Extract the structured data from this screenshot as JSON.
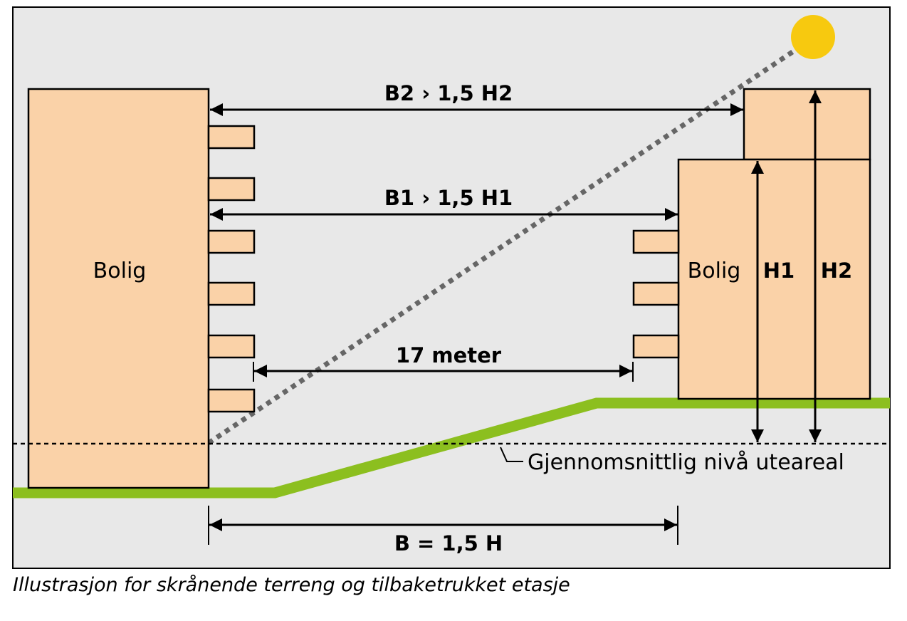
{
  "colors": {
    "background": "#e8e8e8",
    "building": "#fad2a8",
    "terrain": "#8cbf1f",
    "sun": "#f7c90f",
    "line": "#000000",
    "ray": "#666666"
  },
  "buildings": {
    "left_label": "Bolig",
    "right_label": "Bolig"
  },
  "dimensions": {
    "b2": "B2 › 1,5 H2",
    "b1": "B1 › 1,5 H1",
    "distance": "17 meter",
    "h1": "H1",
    "h2": "H2",
    "b_total": "B = 1,5 H"
  },
  "reference_level": "Gjennomsnittlig nivå uteareal",
  "icons": {
    "sun": "sun-icon",
    "arrow": "arrowhead-icon"
  },
  "caption": "Illustrasjon for skrånende terreng og tilbaketrukket etasje"
}
